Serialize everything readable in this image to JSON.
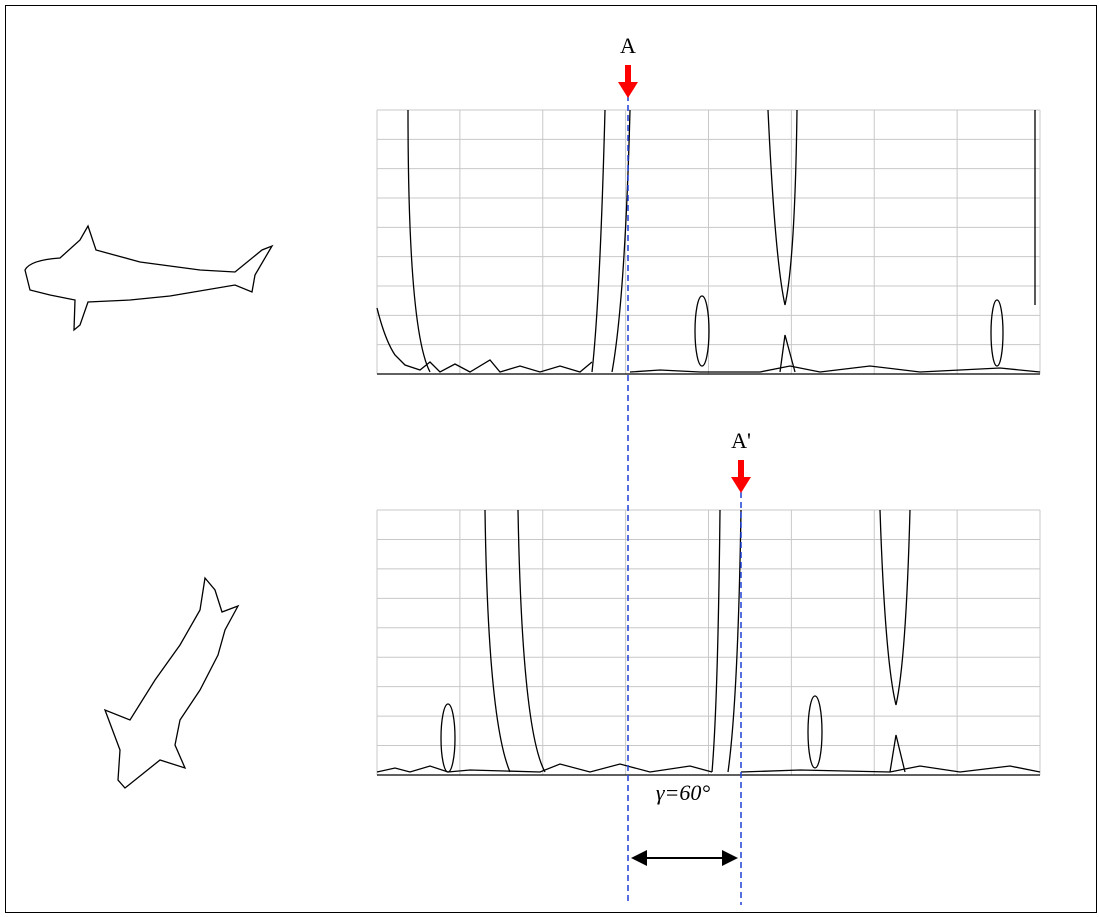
{
  "labels": {
    "a": "A",
    "a_prime": "A'",
    "angle": "γ=60°"
  }
}
